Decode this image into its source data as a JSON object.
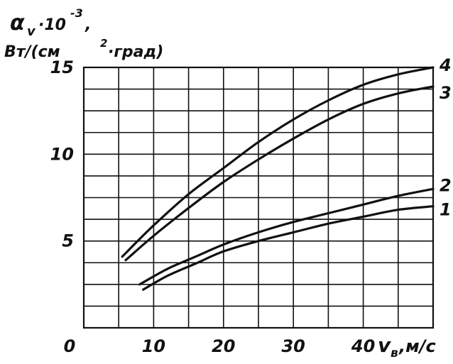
{
  "chart_data": {
    "type": "line",
    "ylabel_lines": [
      "α",
      "v",
      "·10",
      "-3",
      ",",
      "Вт/(см",
      "2",
      "·град)"
    ],
    "xlabel_lines": [
      "v",
      "в",
      ",м/с"
    ],
    "xticks": [
      {
        "value": 0,
        "label": "0"
      },
      {
        "value": 10,
        "label": "10"
      },
      {
        "value": 20,
        "label": "20"
      },
      {
        "value": 30,
        "label": "30"
      },
      {
        "value": 40,
        "label": "40"
      }
    ],
    "yticks": [
      {
        "value": 5,
        "label": "5"
      },
      {
        "value": 10,
        "label": "10"
      },
      {
        "value": 15,
        "label": "15"
      }
    ],
    "xlim": [
      0,
      50
    ],
    "ylim": [
      0,
      15
    ],
    "grid": true,
    "grid_step_x": 5,
    "grid_step_y": 1.25,
    "series": [
      {
        "name": "1",
        "x": [
          8.5,
          12,
          16,
          20,
          25,
          30,
          35,
          40,
          45,
          50
        ],
        "y": [
          2.2,
          3.0,
          3.7,
          4.4,
          5.0,
          5.5,
          6.0,
          6.4,
          6.8,
          7.0
        ]
      },
      {
        "name": "2",
        "x": [
          8,
          12,
          16,
          20,
          25,
          30,
          35,
          40,
          45,
          50
        ],
        "y": [
          2.5,
          3.4,
          4.1,
          4.8,
          5.5,
          6.1,
          6.6,
          7.1,
          7.6,
          8.0
        ]
      },
      {
        "name": "3",
        "x": [
          6,
          10,
          15,
          20,
          25,
          30,
          35,
          40,
          45,
          50
        ],
        "y": [
          3.9,
          5.3,
          6.9,
          8.4,
          9.7,
          10.9,
          12.0,
          12.9,
          13.5,
          13.9
        ]
      },
      {
        "name": "4",
        "x": [
          5.5,
          10,
          15,
          20,
          25,
          30,
          35,
          40,
          45,
          50
        ],
        "y": [
          4.1,
          5.9,
          7.7,
          9.2,
          10.7,
          12.0,
          13.1,
          14.0,
          14.6,
          15.0
        ]
      }
    ]
  }
}
